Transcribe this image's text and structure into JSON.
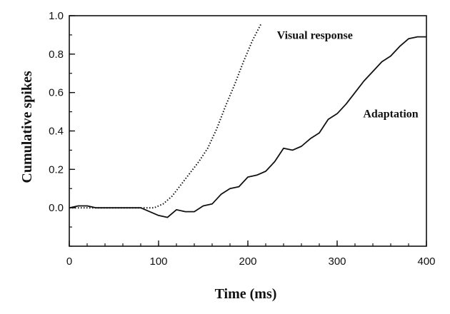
{
  "chart_data": {
    "type": "line",
    "title": "",
    "xlabel": "Time (ms)",
    "ylabel": "Cumulative spikes",
    "xlim": [
      0,
      400
    ],
    "ylim": [
      -0.2,
      1.0
    ],
    "x_ticks": [
      0,
      100,
      200,
      300,
      400
    ],
    "x_tick_labels": [
      "0",
      "100",
      "200",
      "300",
      "400"
    ],
    "y_ticks": [
      0.0,
      0.2,
      0.4,
      0.6,
      0.8,
      1.0
    ],
    "y_tick_labels": [
      "0.0",
      "0.2",
      "0.4",
      "0.6",
      "0.8",
      "1.0"
    ],
    "grid": false,
    "legend": "none",
    "series": [
      {
        "name": "Visual response",
        "style": "dotted",
        "color": "#111111",
        "x": [
          0,
          20,
          40,
          60,
          80,
          95,
          105,
          115,
          125,
          135,
          145,
          155,
          165,
          175,
          185,
          195,
          205,
          215
        ],
        "y": [
          0.0,
          0.0,
          0.0,
          0.0,
          0.0,
          0.0,
          0.02,
          0.06,
          0.12,
          0.18,
          0.24,
          0.31,
          0.41,
          0.53,
          0.64,
          0.76,
          0.87,
          0.96
        ]
      },
      {
        "name": "Adaptation",
        "style": "solid",
        "color": "#111111",
        "x": [
          0,
          10,
          20,
          30,
          40,
          50,
          60,
          70,
          80,
          90,
          100,
          110,
          120,
          130,
          140,
          150,
          160,
          170,
          180,
          190,
          200,
          210,
          220,
          230,
          240,
          250,
          260,
          270,
          280,
          290,
          300,
          310,
          320,
          330,
          340,
          350,
          360,
          370,
          380,
          390,
          400
        ],
        "y": [
          0.0,
          0.01,
          0.01,
          0.0,
          0.0,
          0.0,
          0.0,
          0.0,
          0.0,
          -0.02,
          -0.04,
          -0.05,
          -0.01,
          -0.02,
          -0.02,
          0.01,
          0.02,
          0.07,
          0.1,
          0.11,
          0.16,
          0.17,
          0.19,
          0.24,
          0.31,
          0.3,
          0.32,
          0.36,
          0.39,
          0.46,
          0.49,
          0.54,
          0.6,
          0.66,
          0.71,
          0.76,
          0.79,
          0.84,
          0.88,
          0.89,
          0.89
        ]
      }
    ],
    "annotations": [
      {
        "text": "Visual response",
        "x": 275,
        "y": 0.88
      },
      {
        "text": "Adaptation",
        "x": 360,
        "y": 0.47
      }
    ]
  }
}
